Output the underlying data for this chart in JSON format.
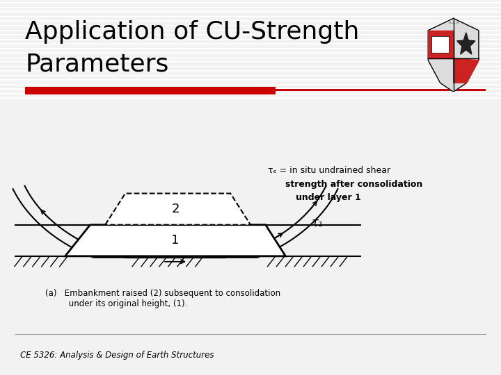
{
  "title_line1": "Application of CU-Strength",
  "title_line2": "Parameters",
  "title_fontsize": 26,
  "title_color": "#000000",
  "bg_color": "#e8e8e8",
  "slide_bg": "#f2f2f2",
  "red_bar_color": "#cc0000",
  "footer_text": "CE 5326: Analysis & Design of Earth Structures",
  "caption_text": "(a)   Embankment raised (2) subsequent to consolidation\n         under its original height, (1).",
  "ann_tau": "τₑ =",
  "ann_line1": " in situ undrained shear",
  "ann_line2": "strength after consolidation",
  "ann_line3": "under layer 1",
  "tau_label": "τ₁",
  "label1": "1",
  "label2": "2"
}
